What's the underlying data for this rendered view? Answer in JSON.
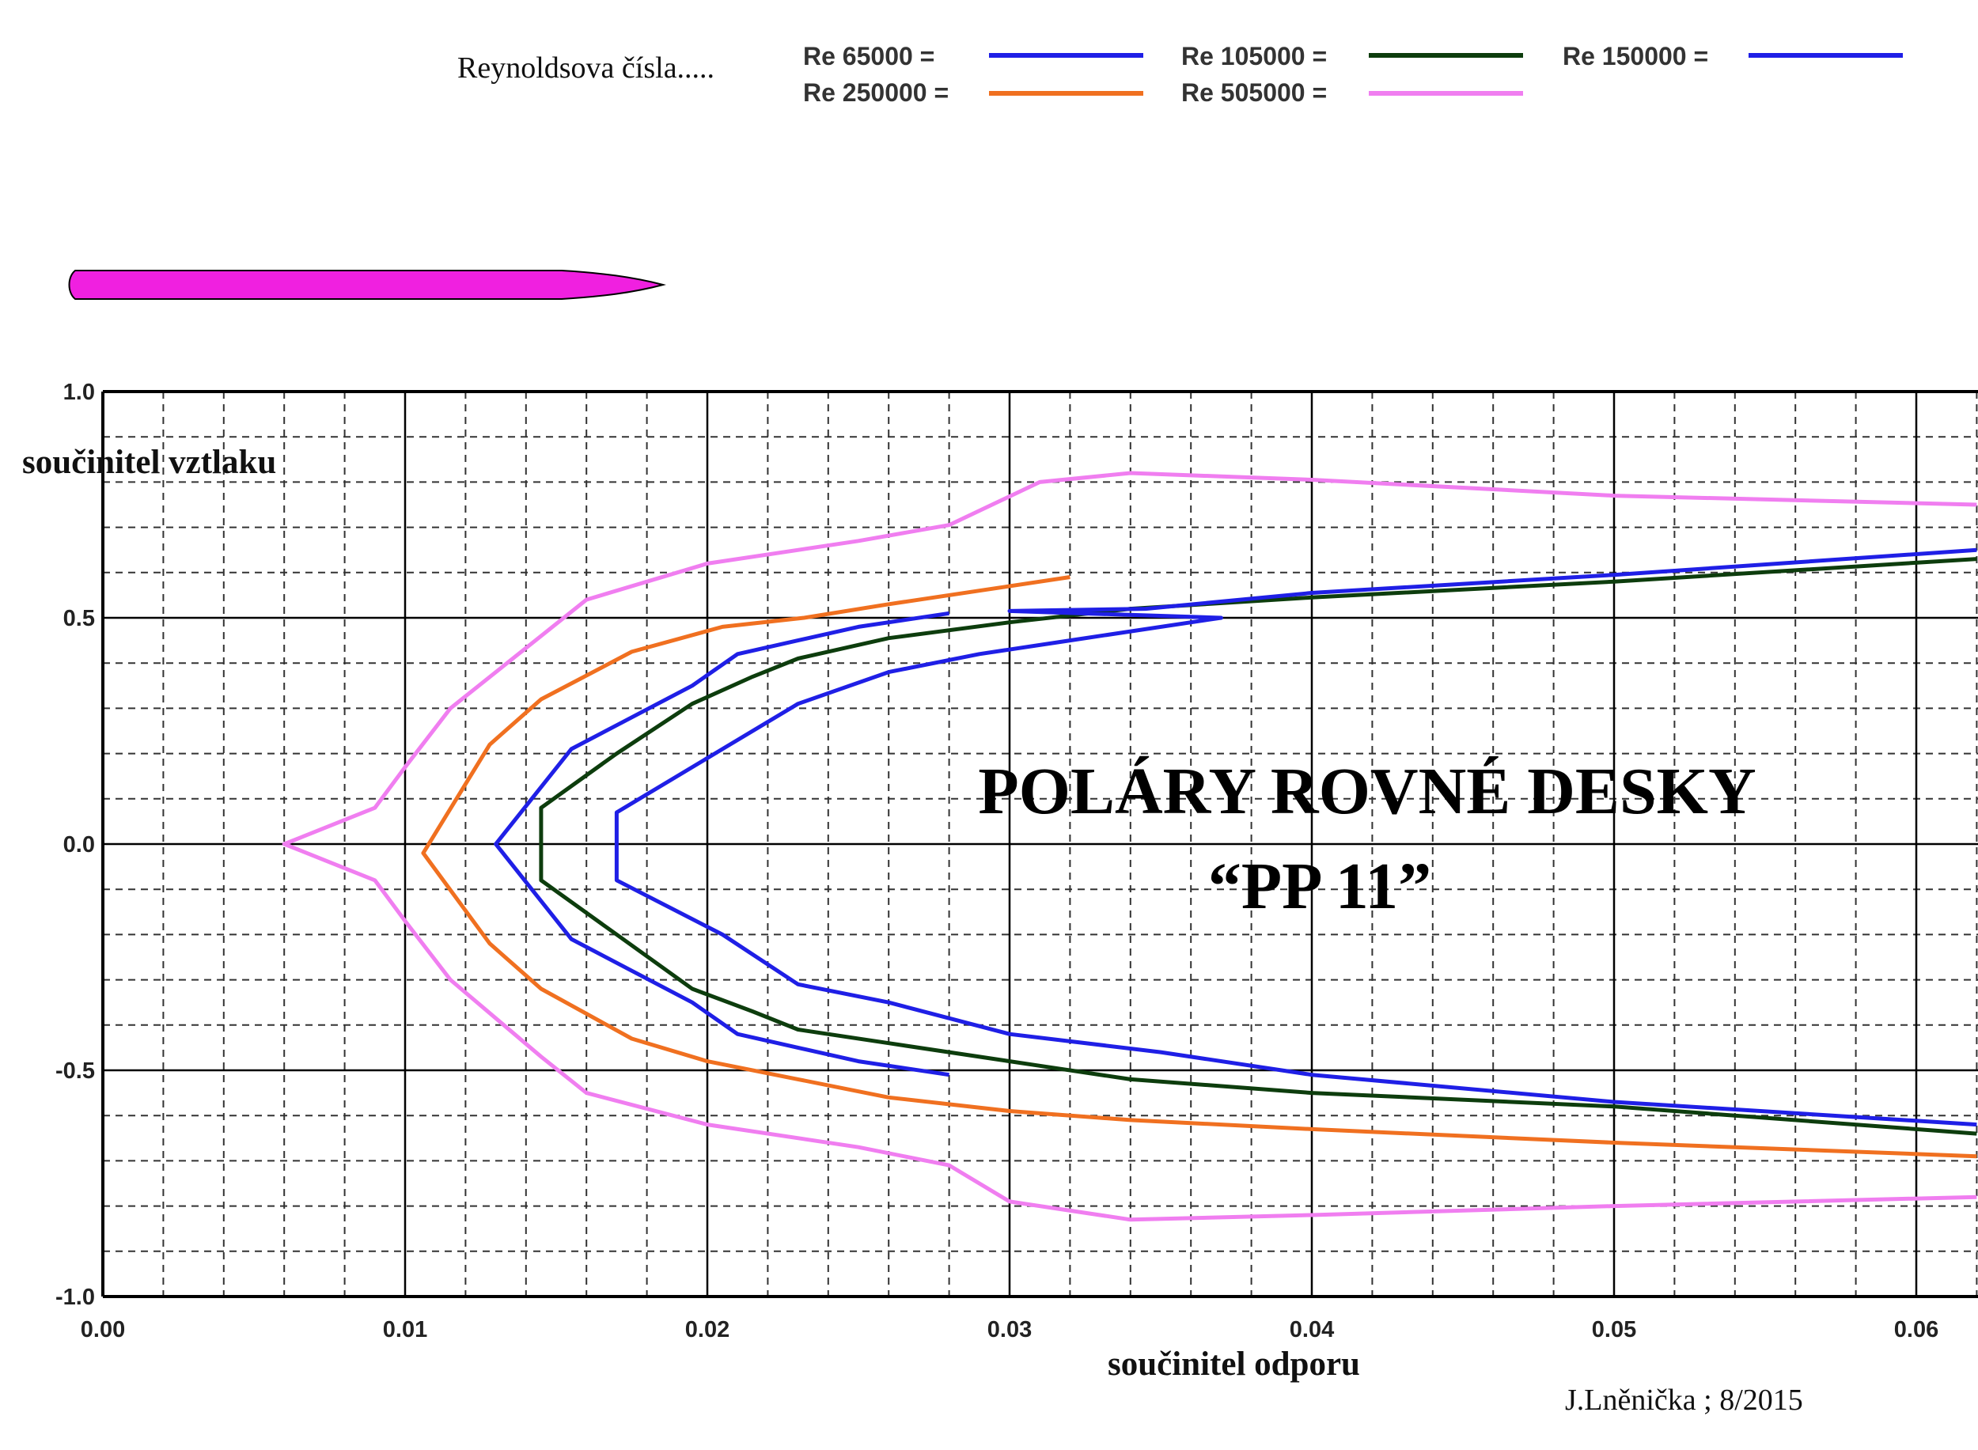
{
  "chart_data": {
    "type": "line",
    "title": "POLÁRY  ROVNÉ  DESKY",
    "subtitle": "“PP  11”",
    "xlabel": "součinitel  odporu",
    "ylabel": "součinitel  vztlaku",
    "xlim": [
      0,
      0.062
    ],
    "ylim": [
      -1.0,
      1.0
    ],
    "x_ticks": [
      "0.00",
      "0.01",
      "0.02",
      "0.03",
      "0.04",
      "0.05",
      "0.06"
    ],
    "y_ticks": [
      "1.0",
      "0.5",
      "0.0",
      "-0.5",
      "-1.0"
    ],
    "grid": true,
    "legend_title": "Reynoldsova  čísla.....",
    "legend_position": "top",
    "series": [
      {
        "name": "Re 65000 =",
        "color": "#1f1fe6",
        "points": [
          [
            0.028,
            0.51
          ],
          [
            0.025,
            0.48
          ],
          [
            0.023,
            0.45
          ],
          [
            0.021,
            0.42
          ],
          [
            0.0195,
            0.35
          ],
          [
            0.0175,
            0.28
          ],
          [
            0.0155,
            0.21
          ],
          [
            0.013,
            0.0
          ],
          [
            0.0155,
            -0.21
          ],
          [
            0.0175,
            -0.28
          ],
          [
            0.0195,
            -0.35
          ],
          [
            0.021,
            -0.42
          ],
          [
            0.023,
            -0.45
          ],
          [
            0.025,
            -0.48
          ],
          [
            0.028,
            -0.51
          ]
        ]
      },
      {
        "name": "Re 105000 =",
        "color": "#0d3d0d",
        "points": [
          [
            0.062,
            0.63
          ],
          [
            0.05,
            0.58
          ],
          [
            0.04,
            0.545
          ],
          [
            0.034,
            0.52
          ],
          [
            0.03,
            0.49
          ],
          [
            0.026,
            0.455
          ],
          [
            0.023,
            0.41
          ],
          [
            0.0215,
            0.37
          ],
          [
            0.0195,
            0.31
          ],
          [
            0.017,
            0.2
          ],
          [
            0.0145,
            0.08
          ],
          [
            0.0145,
            -0.08
          ],
          [
            0.017,
            -0.2
          ],
          [
            0.0195,
            -0.32
          ],
          [
            0.0215,
            -0.37
          ],
          [
            0.023,
            -0.41
          ],
          [
            0.026,
            -0.44
          ],
          [
            0.031,
            -0.49
          ],
          [
            0.034,
            -0.52
          ],
          [
            0.04,
            -0.55
          ],
          [
            0.05,
            -0.58
          ],
          [
            0.062,
            -0.64
          ]
        ]
      },
      {
        "name": "Re 150000 =",
        "color": "#1f1fe6",
        "points": [
          [
            0.062,
            0.65
          ],
          [
            0.05,
            0.595
          ],
          [
            0.04,
            0.555
          ],
          [
            0.0345,
            0.52
          ],
          [
            0.03,
            0.515
          ],
          [
            0.037,
            0.5
          ],
          [
            0.032,
            0.45
          ],
          [
            0.029,
            0.42
          ],
          [
            0.026,
            0.38
          ],
          [
            0.023,
            0.31
          ],
          [
            0.0205,
            0.21
          ],
          [
            0.017,
            0.07
          ],
          [
            0.017,
            -0.08
          ],
          [
            0.0205,
            -0.2
          ],
          [
            0.023,
            -0.31
          ],
          [
            0.026,
            -0.35
          ],
          [
            0.03,
            -0.42
          ],
          [
            0.035,
            -0.46
          ],
          [
            0.04,
            -0.51
          ],
          [
            0.05,
            -0.57
          ],
          [
            0.062,
            -0.62
          ]
        ]
      },
      {
        "name": "Re 250000 =",
        "color": "#f07020",
        "points": [
          [
            0.032,
            0.59
          ],
          [
            0.029,
            0.56
          ],
          [
            0.026,
            0.53
          ],
          [
            0.0232,
            0.5
          ],
          [
            0.0205,
            0.48
          ],
          [
            0.0175,
            0.425
          ],
          [
            0.0145,
            0.32
          ],
          [
            0.0128,
            0.22
          ],
          [
            0.0106,
            -0.02
          ],
          [
            0.0128,
            -0.22
          ],
          [
            0.0145,
            -0.32
          ],
          [
            0.0175,
            -0.43
          ],
          [
            0.02,
            -0.48
          ],
          [
            0.023,
            -0.52
          ],
          [
            0.026,
            -0.56
          ],
          [
            0.03,
            -0.59
          ],
          [
            0.034,
            -0.61
          ],
          [
            0.04,
            -0.63
          ],
          [
            0.05,
            -0.66
          ],
          [
            0.062,
            -0.69
          ]
        ]
      },
      {
        "name": "Re 505000 =",
        "color": "#f07ef0",
        "points": [
          [
            0.062,
            0.75
          ],
          [
            0.05,
            0.77
          ],
          [
            0.04,
            0.805
          ],
          [
            0.034,
            0.82
          ],
          [
            0.031,
            0.8
          ],
          [
            0.028,
            0.705
          ],
          [
            0.025,
            0.67
          ],
          [
            0.02,
            0.62
          ],
          [
            0.016,
            0.54
          ],
          [
            0.0145,
            0.46
          ],
          [
            0.0115,
            0.3
          ],
          [
            0.01,
            0.17
          ],
          [
            0.009,
            0.08
          ],
          [
            0.006,
            0.0
          ],
          [
            0.009,
            -0.08
          ],
          [
            0.01,
            -0.17
          ],
          [
            0.0115,
            -0.3
          ],
          [
            0.0145,
            -0.47
          ],
          [
            0.016,
            -0.55
          ],
          [
            0.02,
            -0.62
          ],
          [
            0.025,
            -0.67
          ],
          [
            0.028,
            -0.71
          ],
          [
            0.03,
            -0.79
          ],
          [
            0.034,
            -0.83
          ],
          [
            0.04,
            -0.82
          ],
          [
            0.05,
            -0.8
          ],
          [
            0.062,
            -0.78
          ]
        ]
      }
    ]
  },
  "author_note": "J.Lněnička ; 8/2015",
  "profile_color": "#f020e0"
}
